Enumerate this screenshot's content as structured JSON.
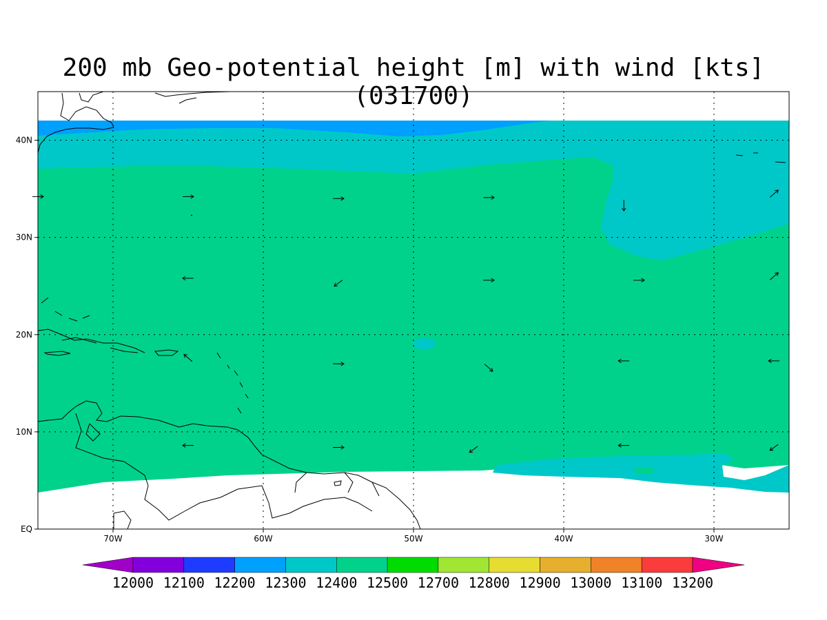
{
  "title": "200 mb Geo-potential height [m] with wind [kts] (031700)",
  "map": {
    "lon_range": [
      -75,
      -25
    ],
    "lat_range": [
      0,
      45
    ],
    "lon_ticks": [
      {
        "value": -70,
        "label": "70W"
      },
      {
        "value": -60,
        "label": "60W"
      },
      {
        "value": -50,
        "label": "50W"
      },
      {
        "value": -40,
        "label": "40W"
      },
      {
        "value": -30,
        "label": "30W"
      }
    ],
    "lat_ticks": [
      {
        "value": 0,
        "label": "EQ"
      },
      {
        "value": 10,
        "label": "10N"
      },
      {
        "value": 20,
        "label": "20N"
      },
      {
        "value": 30,
        "label": "30N"
      },
      {
        "value": 40,
        "label": "40N"
      }
    ],
    "fill_colors": {
      "band_12200_12300": "#00a0ff",
      "band_12300_12400": "#00c8c8",
      "band_12400_12500": "#00d28c"
    },
    "wind_vectors": [
      {
        "lon": -75,
        "lat": 34.2,
        "dir": "E"
      },
      {
        "lon": -65,
        "lat": 34.2,
        "dir": "E"
      },
      {
        "lon": -55,
        "lat": 34.0,
        "dir": "E"
      },
      {
        "lon": -45,
        "lat": 34.1,
        "dir": "E"
      },
      {
        "lon": -36,
        "lat": 33.3,
        "dir": "S"
      },
      {
        "lon": -26,
        "lat": 34.5,
        "dir": "NE"
      },
      {
        "lon": -65,
        "lat": 25.8,
        "dir": "W"
      },
      {
        "lon": -55,
        "lat": 25.3,
        "dir": "SW"
      },
      {
        "lon": -45,
        "lat": 25.6,
        "dir": "E"
      },
      {
        "lon": -35,
        "lat": 25.6,
        "dir": "E"
      },
      {
        "lon": -26,
        "lat": 26.0,
        "dir": "NE"
      },
      {
        "lon": -65,
        "lat": 17.6,
        "dir": "NW"
      },
      {
        "lon": -55,
        "lat": 17.0,
        "dir": "E"
      },
      {
        "lon": -45,
        "lat": 16.6,
        "dir": "SE"
      },
      {
        "lon": -36,
        "lat": 17.3,
        "dir": "W"
      },
      {
        "lon": -26,
        "lat": 17.3,
        "dir": "W"
      },
      {
        "lon": -65,
        "lat": 8.6,
        "dir": "W"
      },
      {
        "lon": -55,
        "lat": 8.4,
        "dir": "E"
      },
      {
        "lon": -46,
        "lat": 8.2,
        "dir": "SW"
      },
      {
        "lon": -36,
        "lat": 8.6,
        "dir": "W"
      },
      {
        "lon": -26,
        "lat": 8.4,
        "dir": "SW"
      }
    ]
  },
  "colorbar": {
    "colors": [
      "#8200dc",
      "#1e3cff",
      "#00a0ff",
      "#00c8c8",
      "#00d28c",
      "#00dc00",
      "#a0e632",
      "#e6dc32",
      "#e6af2d",
      "#f08228",
      "#fa3c3c"
    ],
    "low_color": "#a000c8",
    "high_color": "#f00082",
    "labels": [
      "12000",
      "12100",
      "12200",
      "12300",
      "12400",
      "12500",
      "12700",
      "12800",
      "12900",
      "13000",
      "13100",
      "13200"
    ]
  }
}
